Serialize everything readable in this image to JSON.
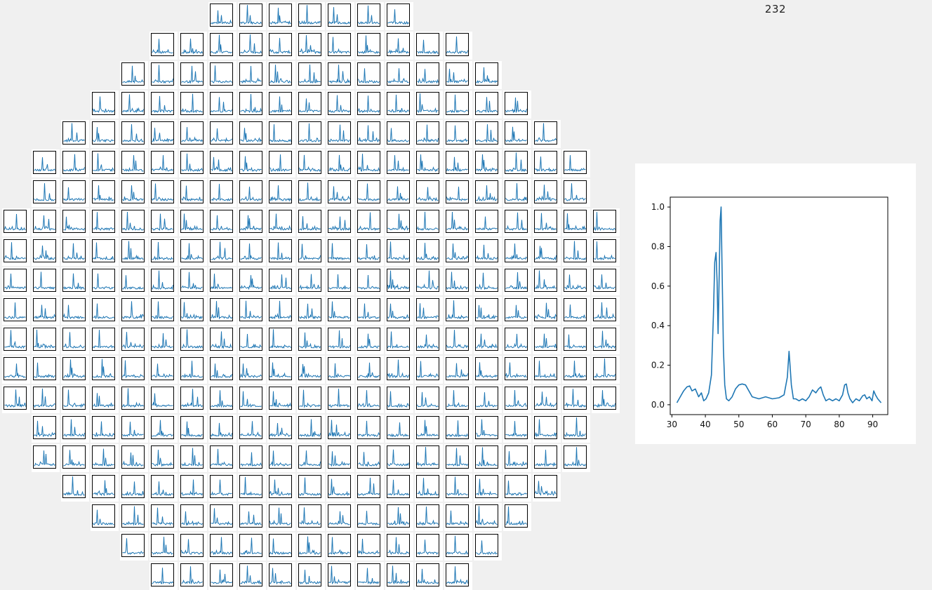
{
  "selected_spectrum_index": "232",
  "colors": {
    "line": "#1f77b4",
    "background": "#f0f0f0",
    "panel": "#ffffff",
    "axes": "#000000"
  },
  "grid": {
    "description_of_rows": "diamond-shaped array of small spectrum thumbnails",
    "row_counts": [
      7,
      11,
      13,
      15,
      17,
      19,
      19,
      21,
      21,
      21,
      21,
      21,
      21,
      21,
      19,
      19,
      17,
      15,
      13,
      11
    ],
    "row_start_columns": [
      7,
      5,
      4,
      3,
      2,
      1,
      1,
      0,
      0,
      0,
      0,
      0,
      0,
      0,
      1,
      1,
      2,
      3,
      4,
      5
    ]
  },
  "chart_data": {
    "type": "line",
    "title": "",
    "xlabel": "",
    "ylabel": "",
    "xlim": [
      29.5,
      94.5
    ],
    "ylim": [
      -0.05,
      1.05
    ],
    "xticks": [
      "30",
      "40",
      "50",
      "60",
      "70",
      "80",
      "90"
    ],
    "yticks": [
      "0.0",
      "0.2",
      "0.4",
      "0.6",
      "0.8",
      "1.0"
    ],
    "grid": false,
    "series": [
      {
        "x": [
          31.5,
          32.5,
          33.5,
          34.5,
          35.3,
          36.0,
          37.0,
          38.0,
          38.8,
          39.5,
          40.2,
          41.0,
          41.8,
          42.4,
          42.8,
          43.2,
          43.5,
          43.8,
          44.1,
          44.4,
          44.7,
          45.0,
          45.4,
          45.8,
          46.3,
          47.0,
          48.0,
          49.0,
          50.0,
          51.0,
          52.0,
          53.0,
          54.0,
          56.0,
          58.0,
          60.0,
          62.0,
          63.5,
          64.5,
          65.0,
          65.3,
          65.7,
          66.3,
          67.0,
          68.0,
          69.0,
          70.0,
          71.0,
          72.0,
          73.0,
          73.8,
          74.5,
          75.2,
          76.0,
          77.0,
          78.0,
          79.0,
          80.0,
          81.0,
          81.6,
          82.1,
          82.6,
          83.2,
          84.0,
          85.0,
          86.0,
          87.0,
          87.6,
          88.2,
          89.0,
          89.8,
          90.3,
          90.8,
          91.5,
          92.5
        ],
        "y": [
          0.01,
          0.04,
          0.07,
          0.09,
          0.095,
          0.07,
          0.08,
          0.04,
          0.06,
          0.02,
          0.03,
          0.06,
          0.15,
          0.45,
          0.72,
          0.77,
          0.62,
          0.36,
          0.62,
          0.93,
          1.0,
          0.68,
          0.28,
          0.1,
          0.03,
          0.02,
          0.04,
          0.08,
          0.1,
          0.105,
          0.1,
          0.07,
          0.04,
          0.03,
          0.04,
          0.03,
          0.035,
          0.05,
          0.14,
          0.27,
          0.2,
          0.1,
          0.03,
          0.03,
          0.02,
          0.03,
          0.02,
          0.04,
          0.075,
          0.06,
          0.08,
          0.09,
          0.05,
          0.02,
          0.03,
          0.02,
          0.03,
          0.02,
          0.05,
          0.1,
          0.105,
          0.06,
          0.03,
          0.01,
          0.03,
          0.02,
          0.045,
          0.05,
          0.03,
          0.04,
          0.02,
          0.07,
          0.05,
          0.03,
          0.01
        ]
      }
    ]
  }
}
